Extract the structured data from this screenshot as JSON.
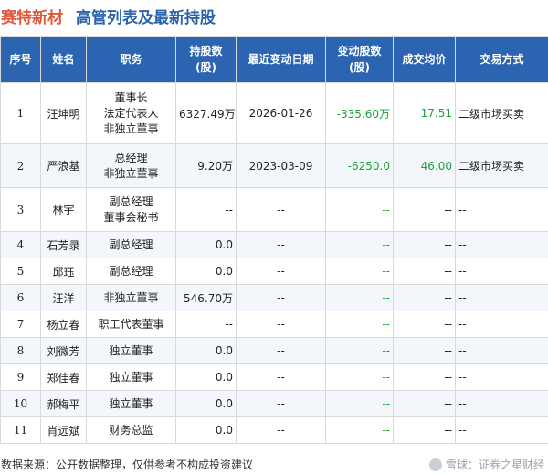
{
  "header": {
    "company": "赛特新材",
    "title": "高管列表及最新持股"
  },
  "table": {
    "columns": [
      "序号",
      "姓名",
      "职务",
      "持股数\n(股)",
      "最近变动日期",
      "变动股数\n(股)",
      "成交均价",
      "交易方式"
    ],
    "rows": [
      {
        "idx": "1",
        "name": "汪坤明",
        "roles": [
          "董事长",
          "法定代表人",
          "非独立董事"
        ],
        "shares": "6327.49万",
        "date": "2026-01-26",
        "change": "-335.60万",
        "price": "17.51",
        "mode": "二级市场买卖"
      },
      {
        "idx": "2",
        "name": "严浪基",
        "roles": [
          "总经理",
          "非独立董事"
        ],
        "shares": "9.20万",
        "date": "2023-03-09",
        "change": "-6250.0",
        "price": "46.00",
        "mode": "二级市场买卖"
      },
      {
        "idx": "3",
        "name": "林宇",
        "roles": [
          "副总经理",
          "董事会秘书"
        ],
        "shares": "--",
        "date": "--",
        "change": "--",
        "price": "--",
        "mode": "--"
      },
      {
        "idx": "4",
        "name": "石芳录",
        "roles": [
          "副总经理"
        ],
        "shares": "0.0",
        "date": "--",
        "change": "--",
        "price": "--",
        "mode": "--"
      },
      {
        "idx": "5",
        "name": "邱珏",
        "roles": [
          "副总经理"
        ],
        "shares": "0.0",
        "date": "--",
        "change": "--",
        "price": "--",
        "mode": "--"
      },
      {
        "idx": "6",
        "name": "汪洋",
        "roles": [
          "非独立董事"
        ],
        "shares": "546.70万",
        "date": "--",
        "change": "--",
        "price": "--",
        "mode": "--"
      },
      {
        "idx": "7",
        "name": "杨立春",
        "roles": [
          "职工代表董事"
        ],
        "shares": "--",
        "date": "--",
        "change": "--",
        "price": "--",
        "mode": "--"
      },
      {
        "idx": "8",
        "name": "刘微芳",
        "roles": [
          "独立董事"
        ],
        "shares": "0.0",
        "date": "--",
        "change": "--",
        "price": "--",
        "mode": "--"
      },
      {
        "idx": "9",
        "name": "郑佳春",
        "roles": [
          "独立董事"
        ],
        "shares": "0.0",
        "date": "--",
        "change": "--",
        "price": "--",
        "mode": "--"
      },
      {
        "idx": "10",
        "name": "郝梅平",
        "roles": [
          "独立董事"
        ],
        "shares": "0.0",
        "date": "--",
        "change": "--",
        "price": "--",
        "mode": "--"
      },
      {
        "idx": "11",
        "name": "肖远斌",
        "roles": [
          "财务总监"
        ],
        "shares": "0.0",
        "date": "--",
        "change": "--",
        "price": "--",
        "mode": "--"
      }
    ]
  },
  "footer": {
    "source": "数据来源：公开数据整理，仅供参考不构成投资建议",
    "brand": "雪球：证券之星财经"
  },
  "watermark": {
    "text": "证券之星"
  },
  "colors": {
    "header_bg": "#2b64b1",
    "company": "#e0573a",
    "title": "#2a63ad",
    "change_value": "#1e9e3a"
  }
}
